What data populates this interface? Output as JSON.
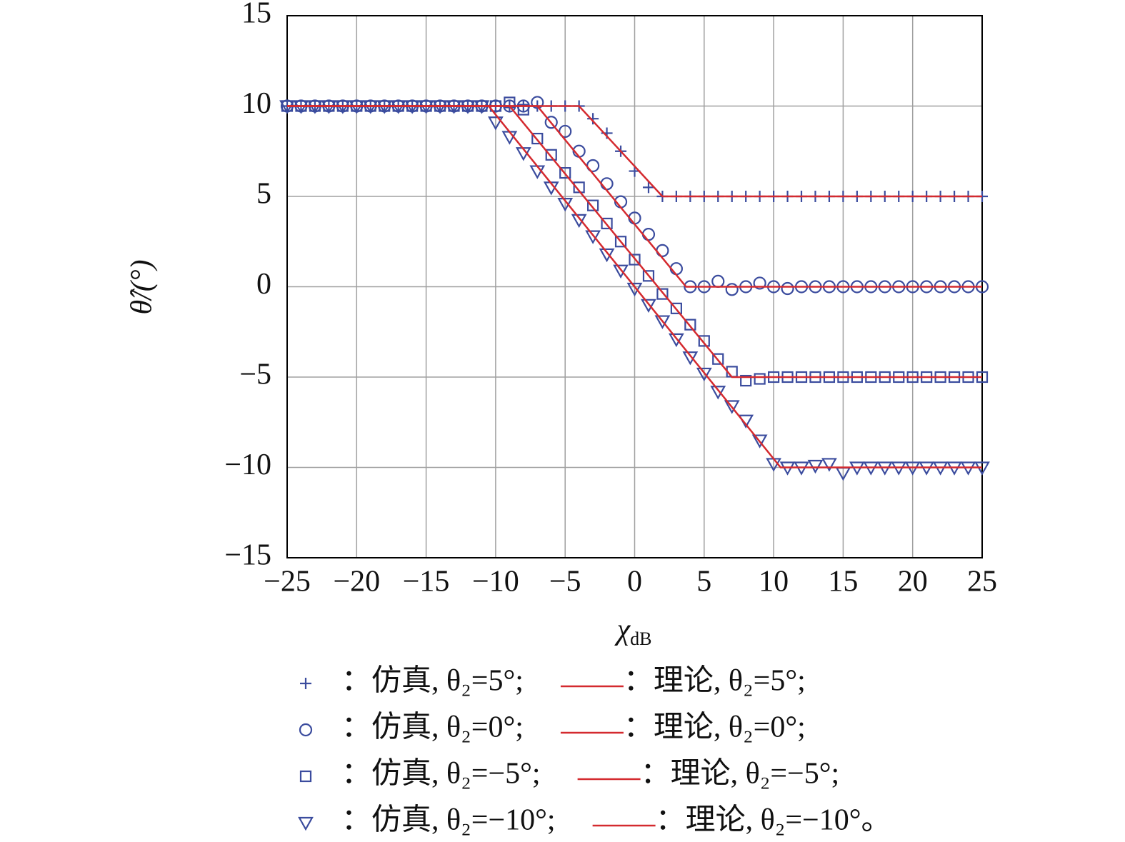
{
  "chart_data": {
    "type": "scatter",
    "x_label": "χdB",
    "y_label": "θ̂/(°)",
    "xlim": [
      -25,
      25
    ],
    "ylim": [
      -15,
      15
    ],
    "xticks": [
      {
        "value": -25,
        "label": "−25"
      },
      {
        "value": -20,
        "label": "−20"
      },
      {
        "value": -15,
        "label": "−15"
      },
      {
        "value": -10,
        "label": "−10"
      },
      {
        "value": -5,
        "label": "−5"
      },
      0,
      5,
      10,
      15,
      20,
      25
    ],
    "yticks": [
      {
        "value": -15,
        "label": "−15"
      },
      {
        "value": -10,
        "label": "−10"
      },
      {
        "value": -5,
        "label": "−5"
      },
      0,
      5,
      10,
      15
    ],
    "grid": true,
    "x": [
      -25,
      -24,
      -23,
      -22,
      -21,
      -20,
      -19,
      -18,
      -17,
      -16,
      -15,
      -14,
      -13,
      -12,
      -11,
      -10,
      -9,
      -8,
      -7,
      -6,
      -5,
      -4,
      -3,
      -2,
      -1,
      0,
      1,
      2,
      3,
      4,
      5,
      6,
      7,
      8,
      9,
      10,
      11,
      12,
      13,
      14,
      15,
      16,
      17,
      18,
      19,
      20,
      21,
      22,
      23,
      24,
      25
    ],
    "series": [
      {
        "name": "：仿真, θ₂=5°;",
        "type": "scatter",
        "marker": "plus",
        "color": "#3b4c9e",
        "values": [
          10,
          10,
          10,
          10,
          10,
          10,
          10,
          10,
          10,
          10,
          10,
          10,
          10,
          10,
          10,
          10,
          10,
          10,
          10,
          10,
          10,
          10,
          9.3,
          8.5,
          7.5,
          6.4,
          5.5,
          5.0,
          5,
          5,
          5,
          5,
          5,
          5,
          5,
          5,
          5,
          5,
          5,
          5,
          5,
          5,
          5,
          5,
          5,
          5,
          5,
          5,
          5,
          5,
          5
        ]
      },
      {
        "name": "：仿真, θ₂=0°;",
        "type": "scatter",
        "marker": "circle",
        "color": "#3b4c9e",
        "values": [
          10,
          10,
          10,
          10,
          10,
          10,
          10,
          10,
          10,
          10,
          10,
          10,
          10,
          10,
          10,
          10,
          10,
          10,
          10.2,
          9.1,
          8.6,
          7.5,
          6.7,
          5.7,
          4.7,
          3.8,
          2.9,
          2.0,
          1.0,
          0,
          0,
          0.3,
          -0.15,
          0,
          0.2,
          0,
          -0.1,
          0,
          0,
          0,
          0,
          0,
          0,
          0,
          0,
          0,
          0,
          0,
          0,
          0,
          0
        ]
      },
      {
        "name": "：仿真, θ₂=−5°;",
        "type": "scatter",
        "marker": "square",
        "color": "#3b4c9e",
        "values": [
          10,
          10,
          10,
          10,
          10,
          10,
          10,
          10,
          10,
          10,
          10,
          10,
          10,
          10,
          10,
          10,
          10.2,
          9.8,
          8.2,
          7.3,
          6.3,
          5.5,
          4.5,
          3.5,
          2.5,
          1.5,
          0.6,
          -0.4,
          -1.2,
          -2.1,
          -3.0,
          -4.0,
          -4.7,
          -5.2,
          -5.1,
          -5,
          -5,
          -5,
          -5,
          -5,
          -5,
          -5,
          -5,
          -5,
          -5,
          -5,
          -5,
          -5,
          -5,
          -5,
          -5
        ]
      },
      {
        "name": "：仿真, θ₂=−10°;",
        "type": "scatter",
        "marker": "triangle",
        "color": "#3b4c9e",
        "values": [
          10,
          10,
          10,
          10,
          10,
          10,
          10,
          10,
          10,
          10,
          10,
          10,
          10,
          10,
          10,
          9.1,
          8.3,
          7.4,
          6.4,
          5.5,
          4.6,
          3.7,
          2.8,
          1.8,
          0.9,
          -0.1,
          -1.0,
          -1.9,
          -2.9,
          -3.9,
          -4.8,
          -5.8,
          -6.6,
          -7.4,
          -8.5,
          -9.8,
          -10,
          -10,
          -9.9,
          -9.8,
          -10.3,
          -10,
          -10,
          -10,
          -10,
          -10,
          -10,
          -10,
          -10,
          -10,
          -10
        ]
      },
      {
        "name": "：理论, θ₂=5°;",
        "type": "line",
        "color": "#d42a2f",
        "x": [
          -25,
          -4,
          2,
          25
        ],
        "values": [
          10,
          10,
          5,
          5
        ]
      },
      {
        "name": "：理论, θ₂=0°;",
        "type": "line",
        "color": "#d42a2f",
        "x": [
          -25,
          -7,
          3.7,
          25
        ],
        "values": [
          10,
          10,
          0,
          0
        ]
      },
      {
        "name": "：理论, θ₂=−5°;",
        "type": "line",
        "color": "#d42a2f",
        "x": [
          -25,
          -9,
          7,
          25
        ],
        "values": [
          10,
          10,
          -5,
          -5
        ]
      },
      {
        "name": "：理论, θ₂=−10°。",
        "type": "line",
        "color": "#d42a2f",
        "x": [
          -25,
          -10.5,
          10.5,
          25
        ],
        "values": [
          10,
          10,
          -10,
          -10
        ]
      }
    ]
  }
}
